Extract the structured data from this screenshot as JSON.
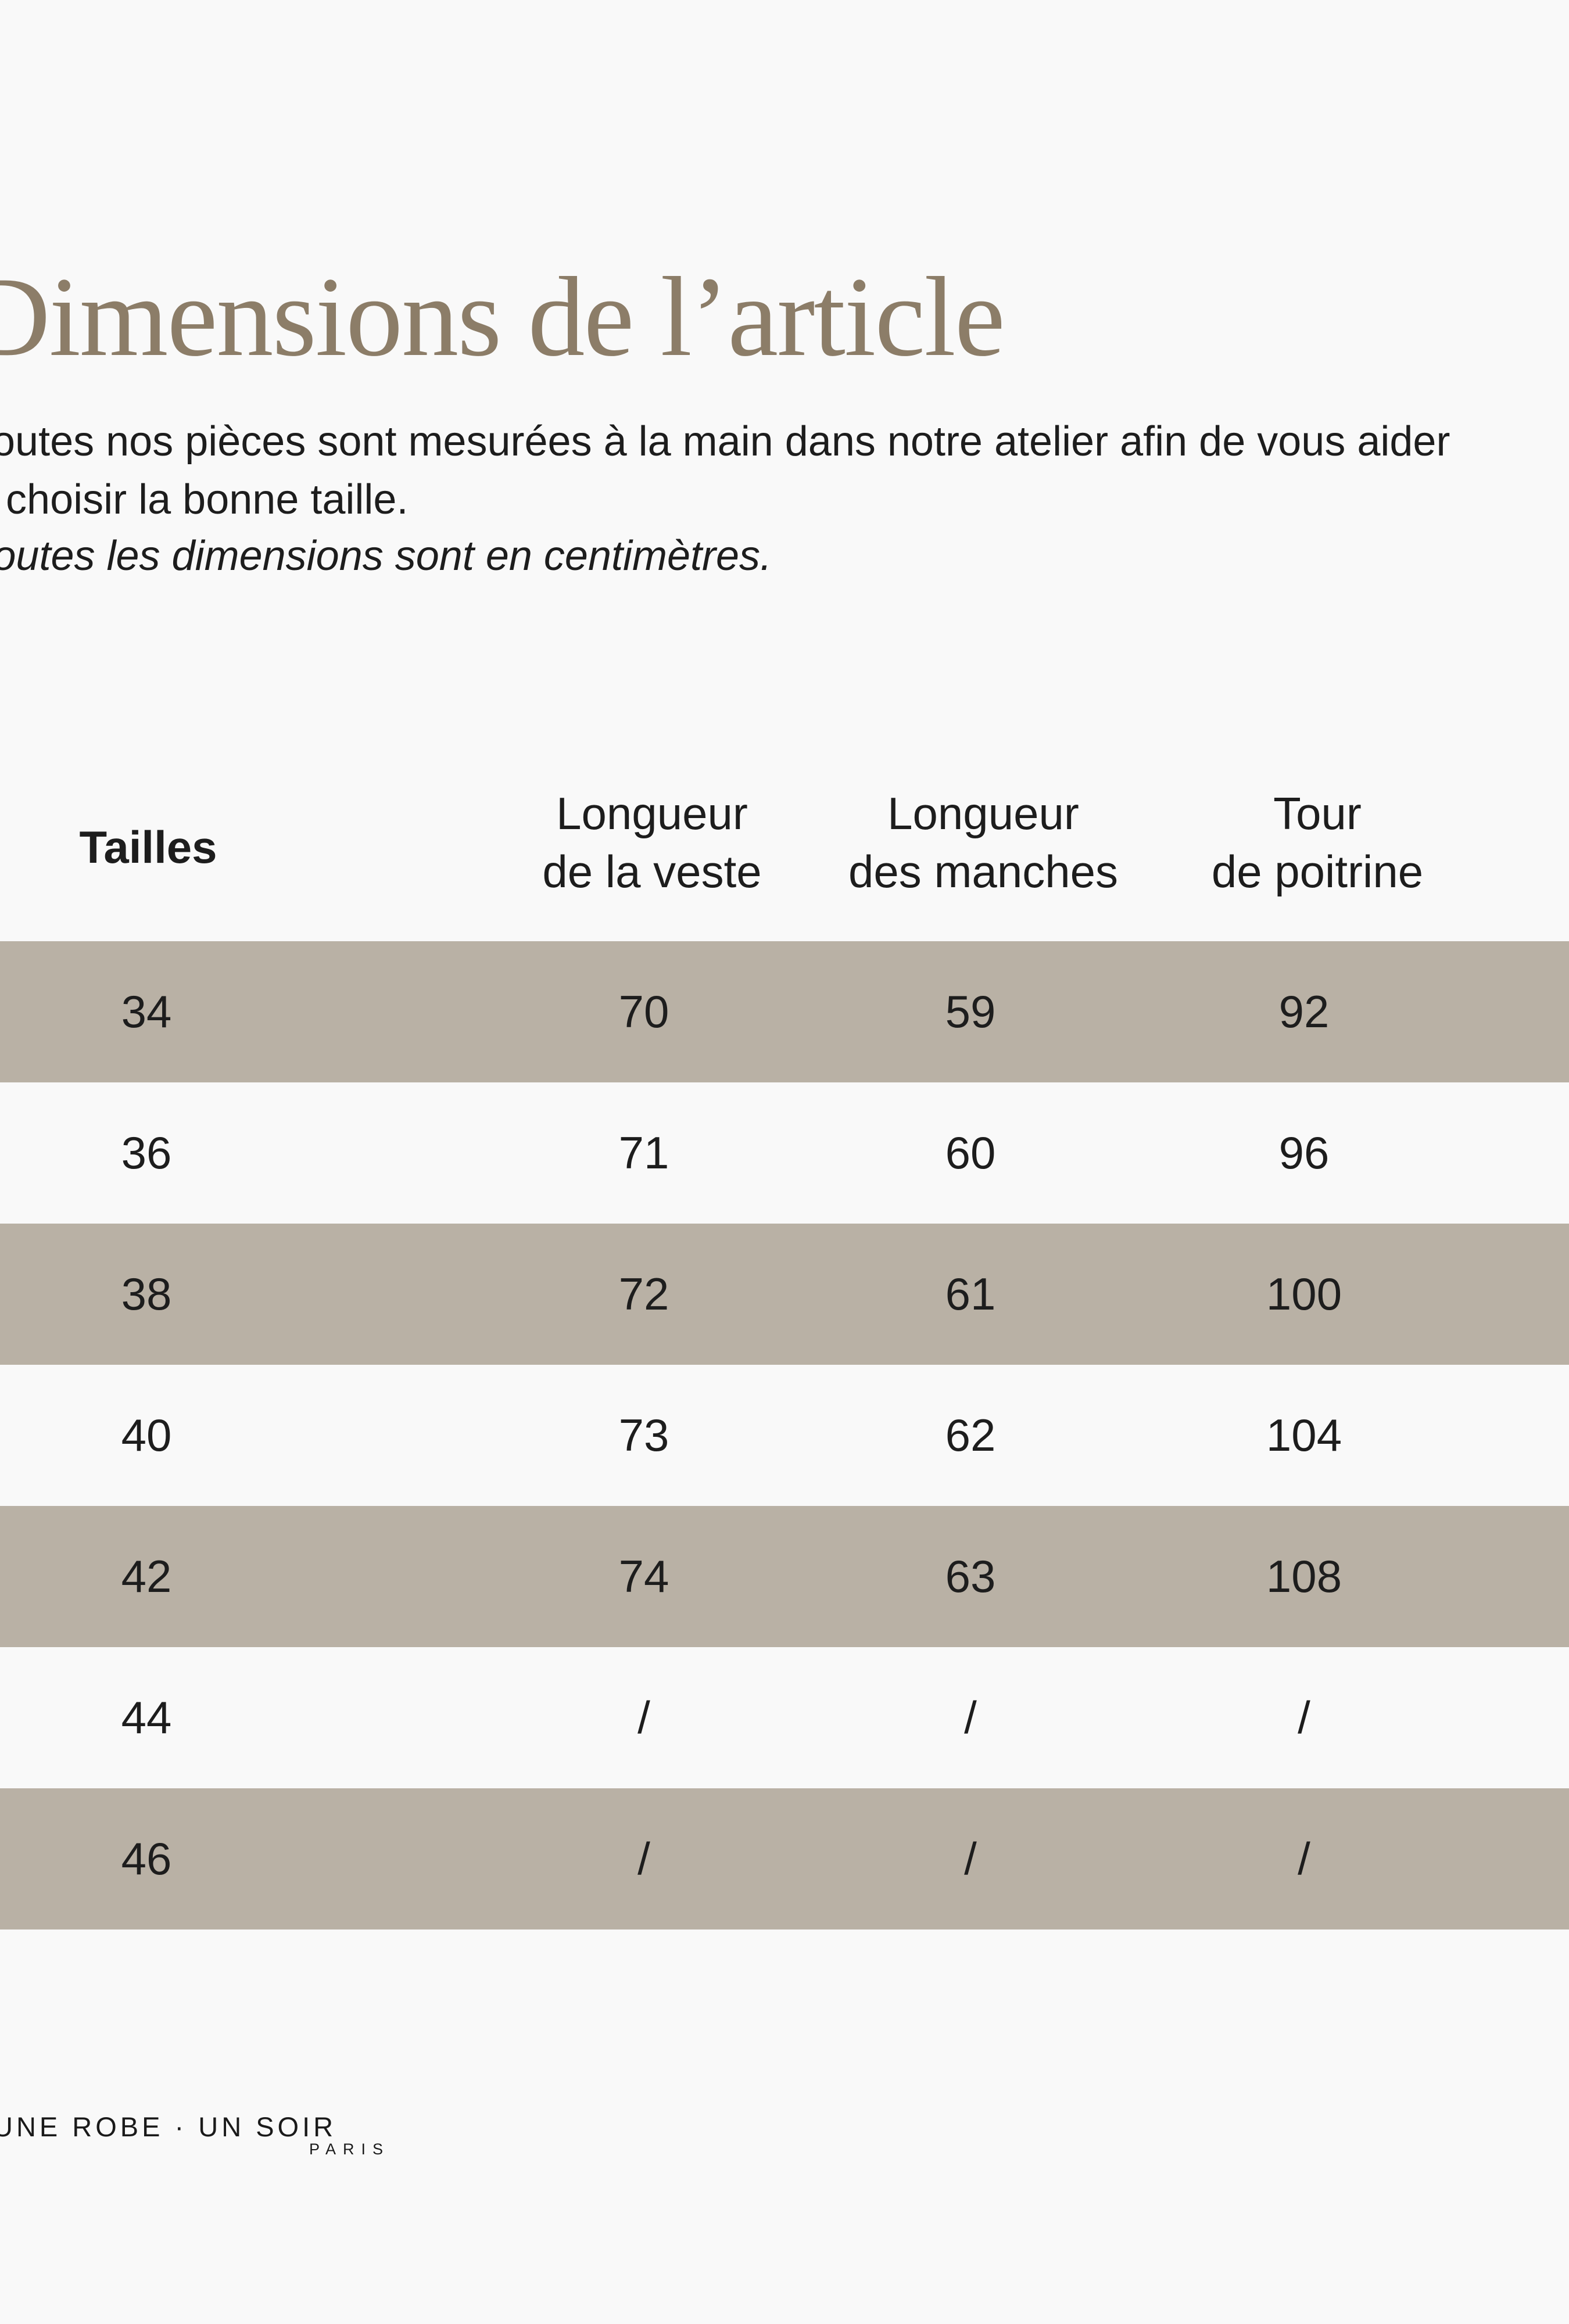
{
  "page": {
    "title": "Dimensions de l’article",
    "intro_line1": "Toutes nos pièces sont mesurées à la main dans notre atelier afin de vous aider",
    "intro_line2": "à choisir la bonne taille.",
    "units_note": "Toutes les dimensions sont en centimètres.",
    "colors": {
      "background": "#f9f9f9",
      "stripe": "#b9b1a5",
      "title": "#8c7d68",
      "text": "#1d1d1d"
    }
  },
  "table": {
    "size_header": "Tailles",
    "columns": [
      {
        "line1": "Longueur",
        "line2": "de la veste"
      },
      {
        "line1": "Longueur",
        "line2": "des manches"
      },
      {
        "line1": "Tour",
        "line2": "de poitrine"
      }
    ],
    "rows": [
      {
        "size": "34",
        "jacket_length": "70",
        "sleeve_length": "59",
        "chest": "92"
      },
      {
        "size": "36",
        "jacket_length": "71",
        "sleeve_length": "60",
        "chest": "96"
      },
      {
        "size": "38",
        "jacket_length": "72",
        "sleeve_length": "61",
        "chest": "100"
      },
      {
        "size": "40",
        "jacket_length": "73",
        "sleeve_length": "62",
        "chest": "104"
      },
      {
        "size": "42",
        "jacket_length": "74",
        "sleeve_length": "63",
        "chest": "108"
      },
      {
        "size": "44",
        "jacket_length": "/",
        "sleeve_length": "/",
        "chest": "/"
      },
      {
        "size": "46",
        "jacket_length": "/",
        "sleeve_length": "/",
        "chest": "/"
      }
    ]
  },
  "footer": {
    "brand": "UNE ROBE · UN SOIR",
    "brand_city": "PARIS"
  }
}
